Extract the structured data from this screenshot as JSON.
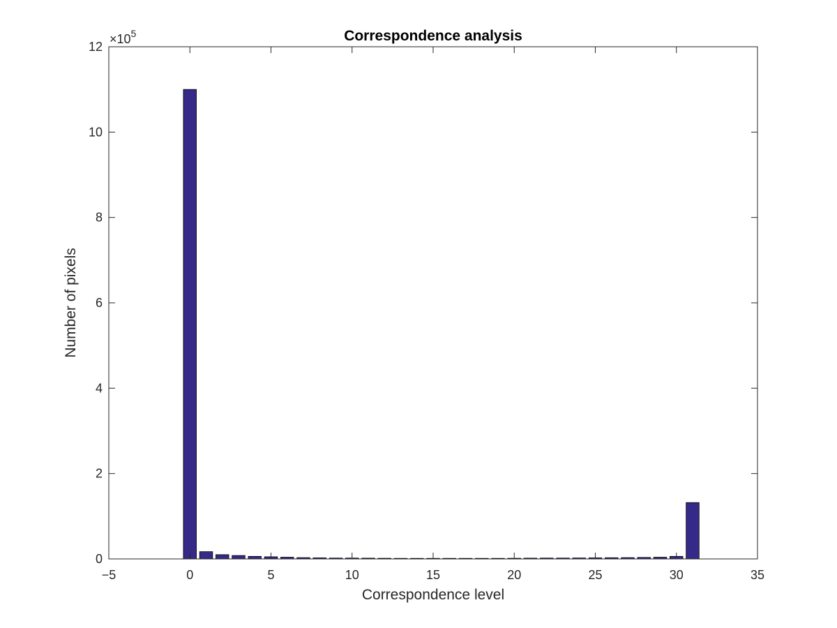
{
  "chart_data": {
    "type": "bar",
    "title": "Correspondence analysis",
    "xlabel": "Correspondence level",
    "ylabel": "Number of pixels",
    "y_exponent_prefix": "×10",
    "y_exponent_power": "5",
    "xlim": [
      -5,
      35
    ],
    "ylim": [
      0,
      12
    ],
    "x_ticks": [
      -5,
      0,
      5,
      10,
      15,
      20,
      25,
      30,
      35
    ],
    "y_ticks": [
      0,
      2,
      4,
      6,
      8,
      10,
      12
    ],
    "grid": false,
    "bar_color": "#352a87",
    "x": [
      0,
      1,
      2,
      3,
      4,
      5,
      6,
      7,
      8,
      9,
      10,
      11,
      12,
      13,
      14,
      15,
      16,
      17,
      18,
      19,
      20,
      21,
      22,
      23,
      24,
      25,
      26,
      27,
      28,
      29,
      30,
      31
    ],
    "values": [
      11.0,
      0.17,
      0.1,
      0.08,
      0.06,
      0.05,
      0.04,
      0.03,
      0.025,
      0.02,
      0.02,
      0.018,
      0.015,
      0.012,
      0.01,
      0.01,
      0.01,
      0.01,
      0.012,
      0.012,
      0.015,
      0.018,
      0.02,
      0.02,
      0.022,
      0.025,
      0.028,
      0.03,
      0.035,
      0.04,
      0.06,
      1.32
    ],
    "value_scale_note": "values in units of 10^5 pixels"
  }
}
